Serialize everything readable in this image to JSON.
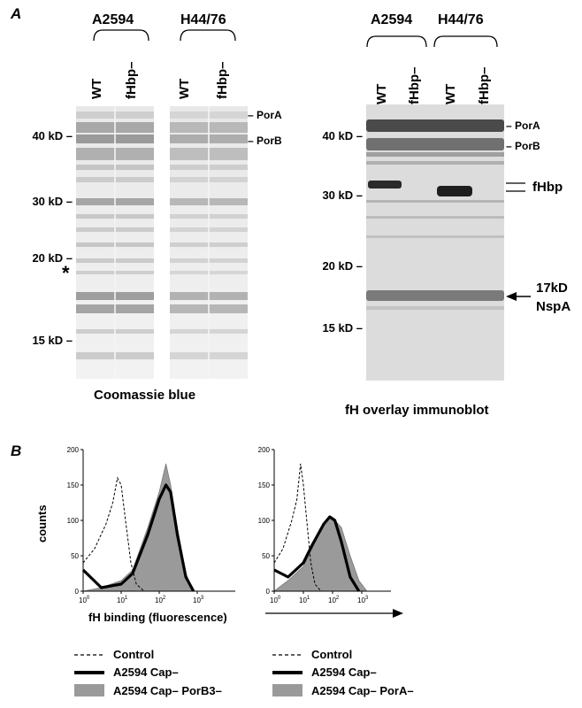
{
  "panelA": {
    "letter": "A",
    "gel_left": {
      "strains": [
        "A2594",
        "H44/76"
      ],
      "lanes": [
        "WT",
        "fHbp–",
        "WT",
        "fHbp–"
      ],
      "markers": [
        "40 kD –",
        "30 kD –",
        "20 kD –",
        "15 kD –"
      ],
      "band_labels": [
        "– PorA",
        "– PorB"
      ],
      "star": "*",
      "caption": "Coomassie blue"
    },
    "blot_right": {
      "strains": [
        "A2594",
        "H44/76"
      ],
      "lanes": [
        "WT",
        "fHbp–",
        "WT",
        "fHbp–"
      ],
      "markers": [
        "40 kD –",
        "30 kD –",
        "20 kD –",
        "15 kD –"
      ],
      "band_labels": [
        "– PorA",
        "– PorB"
      ],
      "fhbp_label": "fHbp",
      "nspa_label_1": "17kD",
      "nspa_label_2": "NspA",
      "caption": "fH  overlay immunoblot"
    }
  },
  "panelB": {
    "letter": "B",
    "ylabel": "counts",
    "xlabel": "fH binding (fluorescence)",
    "yticks": [
      "0",
      "50",
      "100",
      "150",
      "200"
    ],
    "xtick_base": "10",
    "xtick_exps": [
      "0",
      "1",
      "2",
      "3"
    ],
    "legend_left": [
      "Control",
      "A2594 Cap–",
      "A2594 Cap– PorB3–"
    ],
    "legend_right": [
      "Control",
      "A2594 Cap–",
      "A2594 Cap– PorA–"
    ]
  },
  "chart_data": [
    {
      "type": "area",
      "xscale": "log",
      "xlim": [
        1,
        10000
      ],
      "ylim": [
        0,
        200
      ],
      "ylabel": "counts",
      "xlabel": "fH binding (fluorescence)",
      "series": [
        {
          "name": "Control",
          "style": "dashed",
          "x": [
            1,
            2,
            4,
            6,
            8,
            10,
            13,
            18,
            25,
            40
          ],
          "y": [
            40,
            60,
            95,
            125,
            160,
            150,
            100,
            40,
            10,
            0
          ]
        },
        {
          "name": "A2594 Cap–",
          "style": "thick-line",
          "x": [
            1,
            3,
            10,
            20,
            50,
            100,
            150,
            200,
            300,
            500,
            800
          ],
          "y": [
            30,
            5,
            10,
            25,
            80,
            130,
            150,
            140,
            80,
            20,
            0
          ]
        },
        {
          "name": "A2594 Cap– PorB3–",
          "style": "gray-fill",
          "x": [
            1,
            3,
            10,
            20,
            50,
            100,
            150,
            200,
            300,
            500,
            800
          ],
          "y": [
            0,
            5,
            15,
            30,
            90,
            140,
            180,
            150,
            90,
            25,
            0
          ]
        }
      ]
    },
    {
      "type": "area",
      "xscale": "log",
      "xlim": [
        1,
        10000
      ],
      "ylim": [
        0,
        200
      ],
      "series": [
        {
          "name": "Control",
          "style": "dashed",
          "x": [
            1,
            2,
            4,
            6,
            8,
            10,
            13,
            18,
            25,
            40
          ],
          "y": [
            40,
            60,
            100,
            130,
            180,
            150,
            100,
            40,
            10,
            0
          ]
        },
        {
          "name": "A2594 Cap–",
          "style": "thick-line",
          "x": [
            1,
            3,
            10,
            20,
            50,
            80,
            120,
            200,
            400,
            800
          ],
          "y": [
            30,
            20,
            40,
            65,
            95,
            105,
            100,
            70,
            20,
            0
          ]
        },
        {
          "name": "A2594 Cap– PorA–",
          "style": "gray-fill",
          "x": [
            1,
            3,
            10,
            20,
            50,
            80,
            120,
            200,
            400,
            800,
            1500
          ],
          "y": [
            0,
            15,
            35,
            60,
            95,
            105,
            100,
            90,
            50,
            15,
            0
          ]
        }
      ]
    }
  ]
}
